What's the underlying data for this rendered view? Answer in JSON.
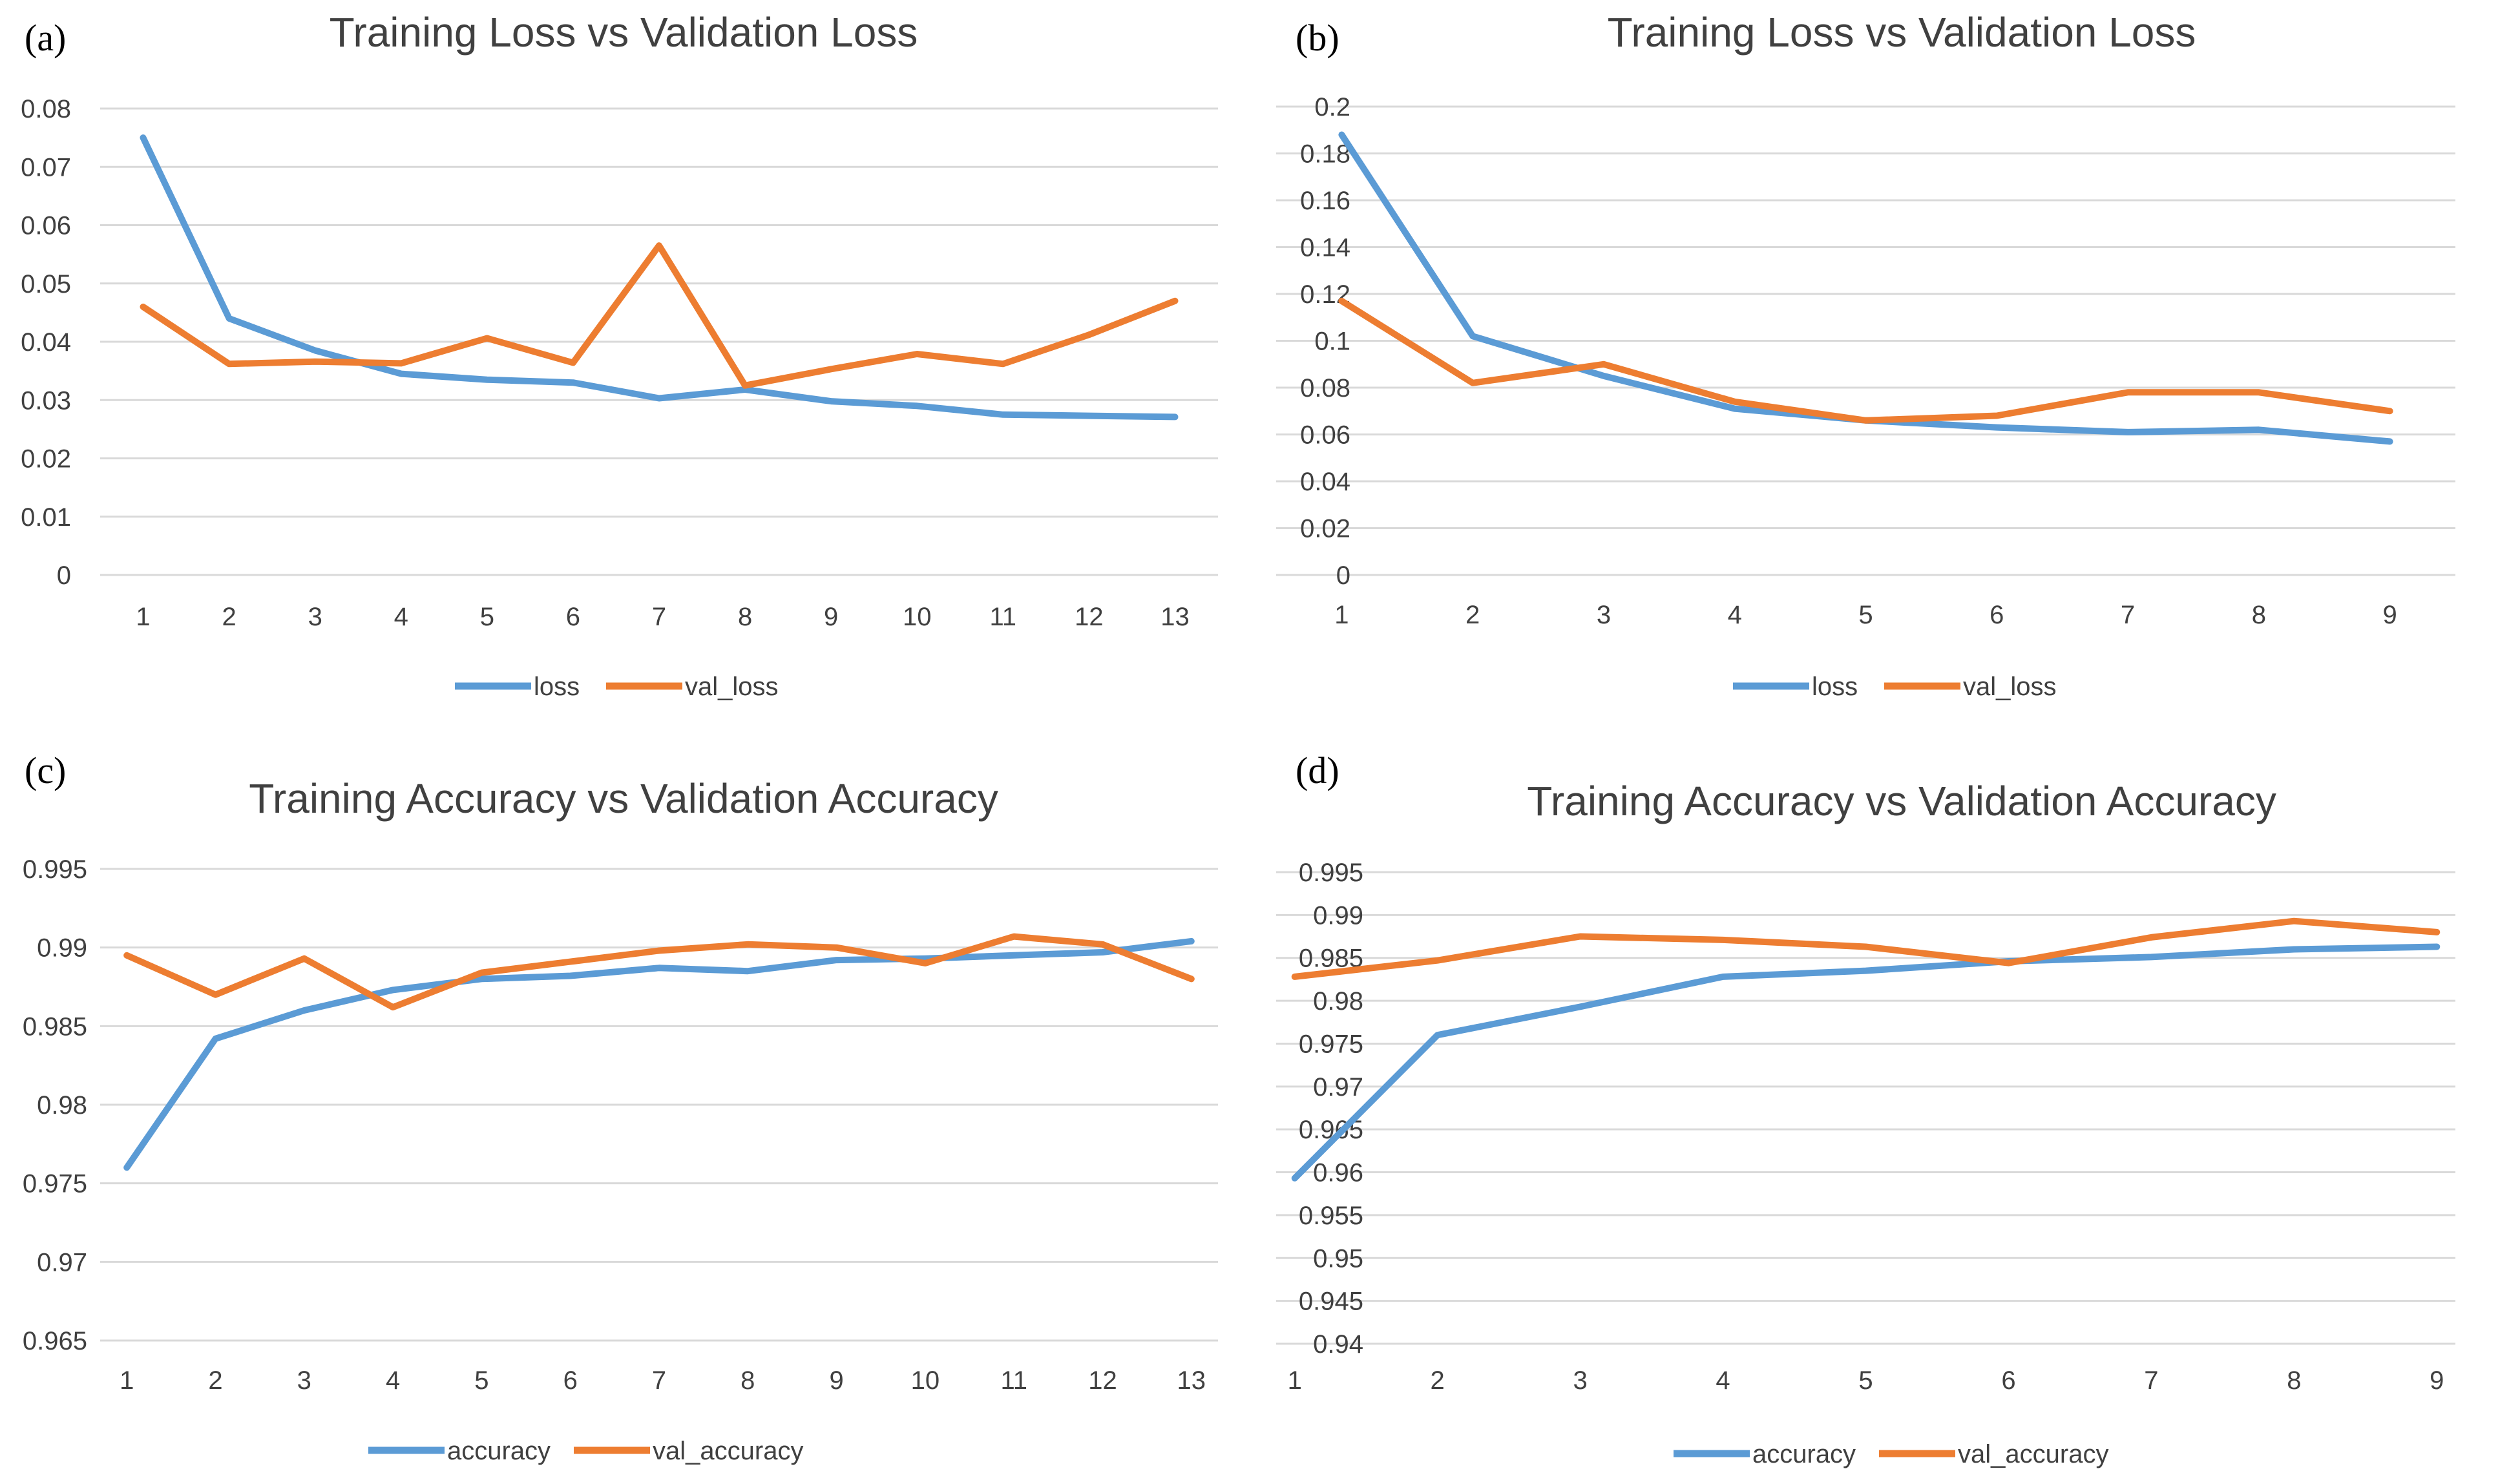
{
  "colors": {
    "series1": "#5b9bd5",
    "series2": "#ed7d31"
  },
  "chart_data": [
    {
      "panel": "(a)",
      "type": "line",
      "title": "Training Loss vs Validation Loss",
      "xlabel": "",
      "ylabel": "",
      "categories": [
        "1",
        "2",
        "3",
        "4",
        "5",
        "6",
        "7",
        "8",
        "9",
        "10",
        "11",
        "12",
        "13"
      ],
      "y_ticks": [
        "0",
        "0.01",
        "0.02",
        "0.03",
        "0.04",
        "0.05",
        "0.06",
        "0.07",
        "0.08"
      ],
      "ylim": [
        0,
        0.08
      ],
      "grid": true,
      "legend": "bottom-center",
      "series": [
        {
          "name": "loss",
          "values": [
            0.075,
            0.044,
            0.0385,
            0.0345,
            0.0335,
            0.033,
            0.0303,
            0.0318,
            0.0298,
            0.029,
            0.0275,
            0.0273,
            0.0271
          ]
        },
        {
          "name": "val_loss",
          "values": [
            0.046,
            0.0362,
            0.0366,
            0.0363,
            0.0406,
            0.0364,
            0.0565,
            0.0325,
            0.0353,
            0.0379,
            0.0362,
            0.0412,
            0.047
          ]
        }
      ]
    },
    {
      "panel": "(b)",
      "type": "line",
      "title": "Training Loss vs Validation Loss",
      "xlabel": "",
      "ylabel": "",
      "categories": [
        "1",
        "2",
        "3",
        "4",
        "5",
        "6",
        "7",
        "8",
        "9"
      ],
      "y_ticks": [
        "0",
        "0.02",
        "0.04",
        "0.06",
        "0.08",
        "0.1",
        "0.12",
        "0.14",
        "0.16",
        "0.18",
        "0.2"
      ],
      "ylim": [
        0,
        0.2
      ],
      "grid": true,
      "legend": "bottom-center",
      "series": [
        {
          "name": "loss",
          "values": [
            0.188,
            0.102,
            0.085,
            0.071,
            0.066,
            0.063,
            0.061,
            0.062,
            0.057
          ]
        },
        {
          "name": "val_loss",
          "values": [
            0.117,
            0.082,
            0.09,
            0.074,
            0.066,
            0.068,
            0.078,
            0.078,
            0.07
          ]
        }
      ]
    },
    {
      "panel": "(c)",
      "type": "line",
      "title": "Training Accuracy vs Validation Accuracy",
      "xlabel": "",
      "ylabel": "",
      "categories": [
        "1",
        "2",
        "3",
        "4",
        "5",
        "6",
        "7",
        "8",
        "9",
        "10",
        "11",
        "12",
        "13"
      ],
      "y_ticks": [
        "0.965",
        "0.97",
        "0.975",
        "0.98",
        "0.985",
        "0.99",
        "0.995"
      ],
      "ylim": [
        0.965,
        0.995
      ],
      "grid": true,
      "legend": "bottom-center",
      "series": [
        {
          "name": "accuracy",
          "values": [
            0.976,
            0.9842,
            0.986,
            0.9873,
            0.988,
            0.9882,
            0.9887,
            0.9885,
            0.9892,
            0.9893,
            0.9895,
            0.9897,
            0.9904
          ]
        },
        {
          "name": "val_accuracy",
          "values": [
            0.9895,
            0.987,
            0.9893,
            0.9862,
            0.9884,
            0.9891,
            0.9898,
            0.9902,
            0.99,
            0.989,
            0.9907,
            0.9902,
            0.988
          ]
        }
      ]
    },
    {
      "panel": "(d)",
      "type": "line",
      "title": "Training Accuracy vs Validation Accuracy",
      "xlabel": "",
      "ylabel": "",
      "categories": [
        "1",
        "2",
        "3",
        "4",
        "5",
        "6",
        "7",
        "8",
        "9"
      ],
      "y_ticks": [
        "0.94",
        "0.945",
        "0.95",
        "0.955",
        "0.96",
        "0.965",
        "0.97",
        "0.975",
        "0.98",
        "0.985",
        "0.99",
        "0.995"
      ],
      "ylim": [
        0.94,
        0.995
      ],
      "grid": true,
      "legend": "bottom-center",
      "series": [
        {
          "name": "accuracy",
          "values": [
            0.9593,
            0.976,
            0.9793,
            0.9828,
            0.9835,
            0.9846,
            0.9851,
            0.986,
            0.9863
          ]
        },
        {
          "name": "val_accuracy",
          "values": [
            0.9828,
            0.9847,
            0.9875,
            0.9871,
            0.9863,
            0.9844,
            0.9874,
            0.9893,
            0.988
          ]
        }
      ]
    }
  ]
}
